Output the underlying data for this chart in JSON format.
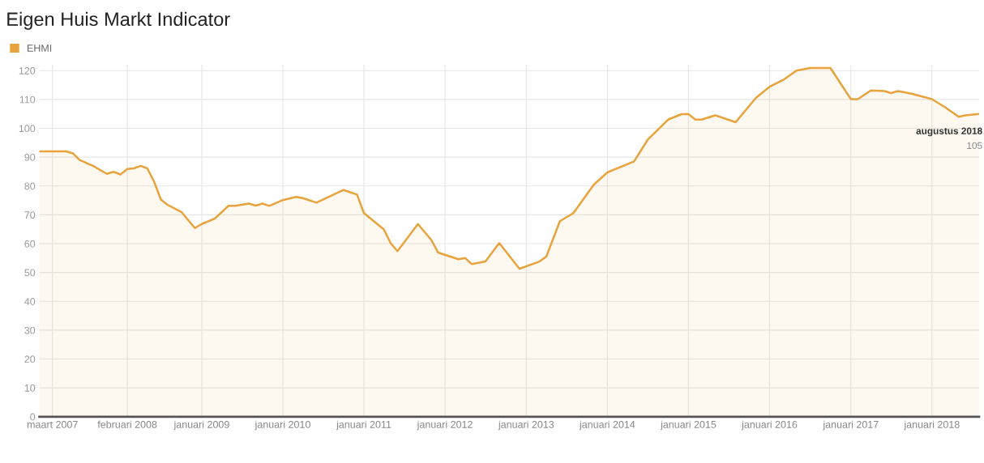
{
  "chart_data": {
    "type": "area",
    "title": "Eigen Huis Markt Indicator",
    "x": [
      "2007-01",
      "2007-05",
      "2007-06",
      "2007-07",
      "2007-09",
      "2007-11",
      "2007-12",
      "2008-01",
      "2008-02",
      "2008-03",
      "2008-04",
      "2008-05",
      "2008-06",
      "2008-07",
      "2008-08",
      "2008-10",
      "2008-12",
      "2009-01",
      "2009-03",
      "2009-05",
      "2009-06",
      "2009-08",
      "2009-09",
      "2009-10",
      "2009-11",
      "2010-01",
      "2010-03",
      "2010-04",
      "2010-06",
      "2010-10",
      "2010-12",
      "2011-01",
      "2011-04",
      "2011-05",
      "2011-06",
      "2011-09",
      "2011-11",
      "2011-12",
      "2012-03",
      "2012-04",
      "2012-05",
      "2012-07",
      "2012-09",
      "2012-12",
      "2013-03",
      "2013-04",
      "2013-06",
      "2013-08",
      "2013-11",
      "2014-01",
      "2014-05",
      "2014-07",
      "2014-10",
      "2014-12",
      "2015-01",
      "2015-02",
      "2015-03",
      "2015-05",
      "2015-06",
      "2015-08",
      "2015-11",
      "2016-01",
      "2016-03",
      "2016-05",
      "2016-07",
      "2016-10",
      "2017-01",
      "2017-02",
      "2017-04",
      "2017-06",
      "2017-07",
      "2017-08",
      "2017-10",
      "2018-01",
      "2018-03",
      "2018-05",
      "2018-06",
      "2018-08"
    ],
    "series": [
      {
        "name": "EHMI",
        "color": "#e8a33d",
        "values": [
          92,
          92,
          91.3,
          89,
          86.9,
          84.2,
          84.9,
          84,
          85.9,
          86.1,
          87,
          86.1,
          81.4,
          75.3,
          73.4,
          71,
          65.4,
          66.8,
          68.7,
          73.1,
          73.1,
          73.9,
          73.2,
          73.9,
          73.1,
          75.1,
          76.2,
          75.8,
          74.2,
          78.6,
          77,
          70.6,
          64.9,
          60.2,
          57.4,
          66.8,
          61.2,
          56.9,
          54.6,
          55,
          52.9,
          53.8,
          60.2,
          51.3,
          53.8,
          55.5,
          67.8,
          70.6,
          80.5,
          84.7,
          88.5,
          96,
          103,
          104.9,
          104.9,
          103,
          103,
          104.5,
          103.7,
          102.1,
          110.6,
          114.4,
          116.7,
          120,
          120.9,
          120.9,
          110.1,
          110.1,
          113.1,
          112.9,
          112.2,
          112.9,
          112,
          110.1,
          107.3,
          104,
          104.5,
          105
        ]
      }
    ],
    "xlim": [
      "2007-01",
      "2018-08"
    ],
    "xticks": [
      {
        "value": "2007-03",
        "label": "maart 2007"
      },
      {
        "value": "2008-02",
        "label": "februari 2008"
      },
      {
        "value": "2009-01",
        "label": "januari 2009"
      },
      {
        "value": "2010-01",
        "label": "januari 2010"
      },
      {
        "value": "2011-01",
        "label": "januari 2011"
      },
      {
        "value": "2012-01",
        "label": "januari 2012"
      },
      {
        "value": "2013-01",
        "label": "januari 2013"
      },
      {
        "value": "2014-01",
        "label": "januari 2014"
      },
      {
        "value": "2015-01",
        "label": "januari 2015"
      },
      {
        "value": "2016-01",
        "label": "januari 2016"
      },
      {
        "value": "2017-01",
        "label": "januari 2017"
      },
      {
        "value": "2018-01",
        "label": "januari 2018"
      }
    ],
    "ylim": [
      0,
      122
    ],
    "yticks": [
      0,
      10,
      20,
      30,
      40,
      50,
      60,
      70,
      80,
      90,
      100,
      110,
      120
    ],
    "grid": true,
    "legend": "top left",
    "annotations": [
      {
        "text": "augustus 2018",
        "x": "2018-08",
        "y": 105
      },
      {
        "text": "105",
        "x": "2018-08",
        "y": 105
      }
    ]
  }
}
